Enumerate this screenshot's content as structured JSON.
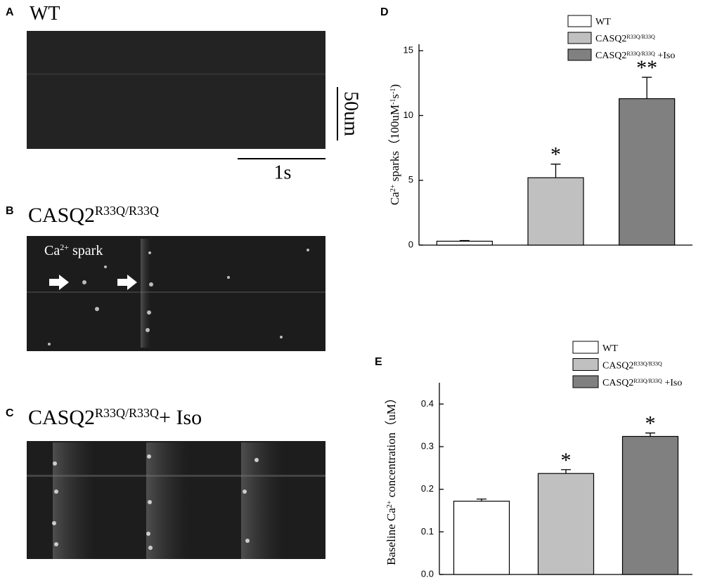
{
  "panels": [
    {
      "letter": "A",
      "title": [
        {
          "text": "WT"
        }
      ]
    },
    {
      "letter": "B",
      "title": [
        {
          "text": "CASQ2"
        },
        {
          "text": "R33Q/R33Q",
          "sup": true
        }
      ]
    },
    {
      "letter": "C",
      "title": [
        {
          "text": "CASQ2"
        },
        {
          "text": "R33Q/R33Q",
          "sup": true
        },
        {
          "text": "+ Iso"
        }
      ]
    }
  ],
  "scale_bars": {
    "vertical": "50um",
    "horizontal": "1s"
  },
  "annotation": [
    {
      "text": "Ca"
    },
    {
      "text": "2+",
      "sup": true
    },
    {
      "text": " spark"
    }
  ],
  "chart_data": [
    {
      "type": "bar",
      "panel_label": "D",
      "y_label": [
        {
          "text": "Ca"
        },
        {
          "text": "2+",
          "sup": true
        },
        {
          "text": " sparks（100uM"
        },
        {
          "text": "-1",
          "sup": true
        },
        {
          "text": "s"
        },
        {
          "text": "-1",
          "sup": true
        },
        {
          "text": ")"
        }
      ],
      "categories": [
        [
          {
            "text": "WT"
          }
        ],
        [
          {
            "text": "CASQ2"
          },
          {
            "text": "R33Q/R33Q",
            "sup": true
          }
        ],
        [
          {
            "text": "CASQ2"
          },
          {
            "text": "R33Q/R33Q",
            "sup": true
          },
          {
            "text": " +Iso"
          }
        ]
      ],
      "values": [
        0.3,
        5.2,
        11.3
      ],
      "errors": [
        0.05,
        1.05,
        1.65
      ],
      "annotations": [
        null,
        "*",
        "**"
      ],
      "colors": [
        "#ffffff",
        "#c0c0c0",
        "#808080"
      ],
      "ylim": [
        0,
        15.5
      ],
      "yticks": [
        0,
        5,
        10,
        15
      ],
      "legend": "top-right"
    },
    {
      "type": "bar",
      "panel_label": "E",
      "y_label": [
        {
          "text": "Baseline Ca"
        },
        {
          "text": "2+",
          "sup": true
        },
        {
          "text": " concentration（uM）"
        }
      ],
      "categories": [
        [
          {
            "text": "WT"
          }
        ],
        [
          {
            "text": "CASQ2"
          },
          {
            "text": "R33Q/R33Q",
            "sup": true
          }
        ],
        [
          {
            "text": "CASQ2"
          },
          {
            "text": "R33Q/R33Q",
            "sup": true
          },
          {
            "text": " +Iso"
          }
        ]
      ],
      "values": [
        0.172,
        0.237,
        0.324
      ],
      "errors": [
        0.005,
        0.009,
        0.008
      ],
      "annotations": [
        null,
        "*",
        "*"
      ],
      "colors": [
        "#ffffff",
        "#c0c0c0",
        "#808080"
      ],
      "ylim": [
        0,
        0.45
      ],
      "yticks": [
        {
          "value": 0,
          "label": "0.0"
        },
        0.1,
        0.2,
        0.3,
        0.4
      ],
      "legend": "top-right"
    }
  ]
}
